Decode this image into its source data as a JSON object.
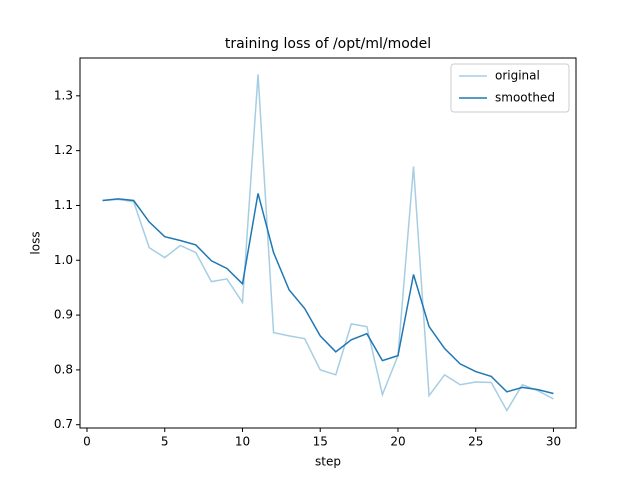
{
  "chart_data": {
    "type": "line",
    "title": "training loss of /opt/ml/model",
    "x_label": "step",
    "y_label": "loss",
    "x": [
      1,
      2,
      3,
      4,
      5,
      6,
      7,
      8,
      9,
      10,
      11,
      12,
      13,
      14,
      15,
      16,
      17,
      18,
      19,
      20,
      21,
      22,
      23,
      24,
      25,
      26,
      27,
      28,
      29,
      30
    ],
    "series": [
      {
        "name": "original",
        "color": "#a6cee3",
        "values": [
          1.109,
          1.111,
          1.107,
          1.023,
          1.005,
          1.027,
          1.014,
          0.961,
          0.966,
          0.923,
          1.339,
          0.868,
          0.862,
          0.857,
          0.8,
          0.791,
          0.884,
          0.879,
          0.755,
          0.826,
          1.171,
          0.753,
          0.791,
          0.773,
          0.778,
          0.777,
          0.726,
          0.773,
          0.762,
          0.747
        ]
      },
      {
        "name": "smoothed",
        "color": "#1f78b4",
        "values": [
          1.109,
          1.112,
          1.109,
          1.07,
          1.043,
          1.036,
          1.028,
          0.999,
          0.985,
          0.957,
          1.122,
          1.014,
          0.946,
          0.912,
          0.862,
          0.833,
          0.855,
          0.866,
          0.817,
          0.826,
          0.974,
          0.879,
          0.839,
          0.811,
          0.797,
          0.788,
          0.76,
          0.768,
          0.764,
          0.757
        ]
      }
    ],
    "xlim": [
      -0.45,
      31.45
    ],
    "xticks": [
      0,
      5,
      10,
      15,
      20,
      25,
      30
    ],
    "ylim": [
      0.694,
      1.369
    ],
    "yticks": [
      0.7,
      0.8,
      0.9,
      1.0,
      1.1,
      1.2,
      1.3
    ],
    "legend": "upper right",
    "grid": false
  }
}
